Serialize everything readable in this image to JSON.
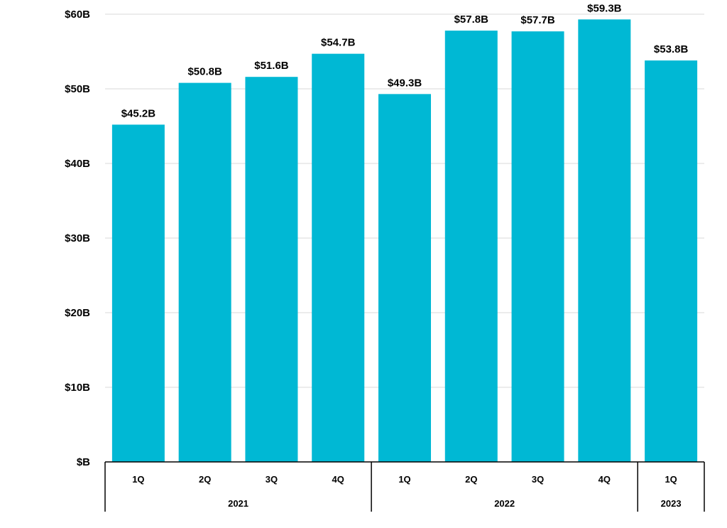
{
  "chart_data": {
    "type": "bar",
    "title": "",
    "xlabel": "",
    "ylabel": "",
    "categories": [
      "1Q",
      "2Q",
      "3Q",
      "4Q",
      "1Q",
      "2Q",
      "3Q",
      "4Q",
      "1Q"
    ],
    "groups": [
      {
        "label": "2021",
        "count": 4
      },
      {
        "label": "2022",
        "count": 4
      },
      {
        "label": "2023",
        "count": 1
      }
    ],
    "values": [
      45.2,
      50.8,
      51.6,
      54.7,
      49.3,
      57.8,
      57.7,
      59.3,
      53.8
    ],
    "data_labels": [
      "$45.2B",
      "$50.8B",
      "$51.6B",
      "$54.7B",
      "$49.3B",
      "$57.8B",
      "$57.7B",
      "$59.3B",
      "$53.8B"
    ],
    "ylim": [
      0,
      60
    ],
    "yticks": [
      0,
      10,
      20,
      30,
      40,
      50,
      60
    ],
    "ytick_labels": [
      "$B",
      "$10B",
      "$20B",
      "$30B",
      "$40B",
      "$50B",
      "$60B"
    ],
    "grid": true,
    "bar_color": "#00B8D4"
  }
}
